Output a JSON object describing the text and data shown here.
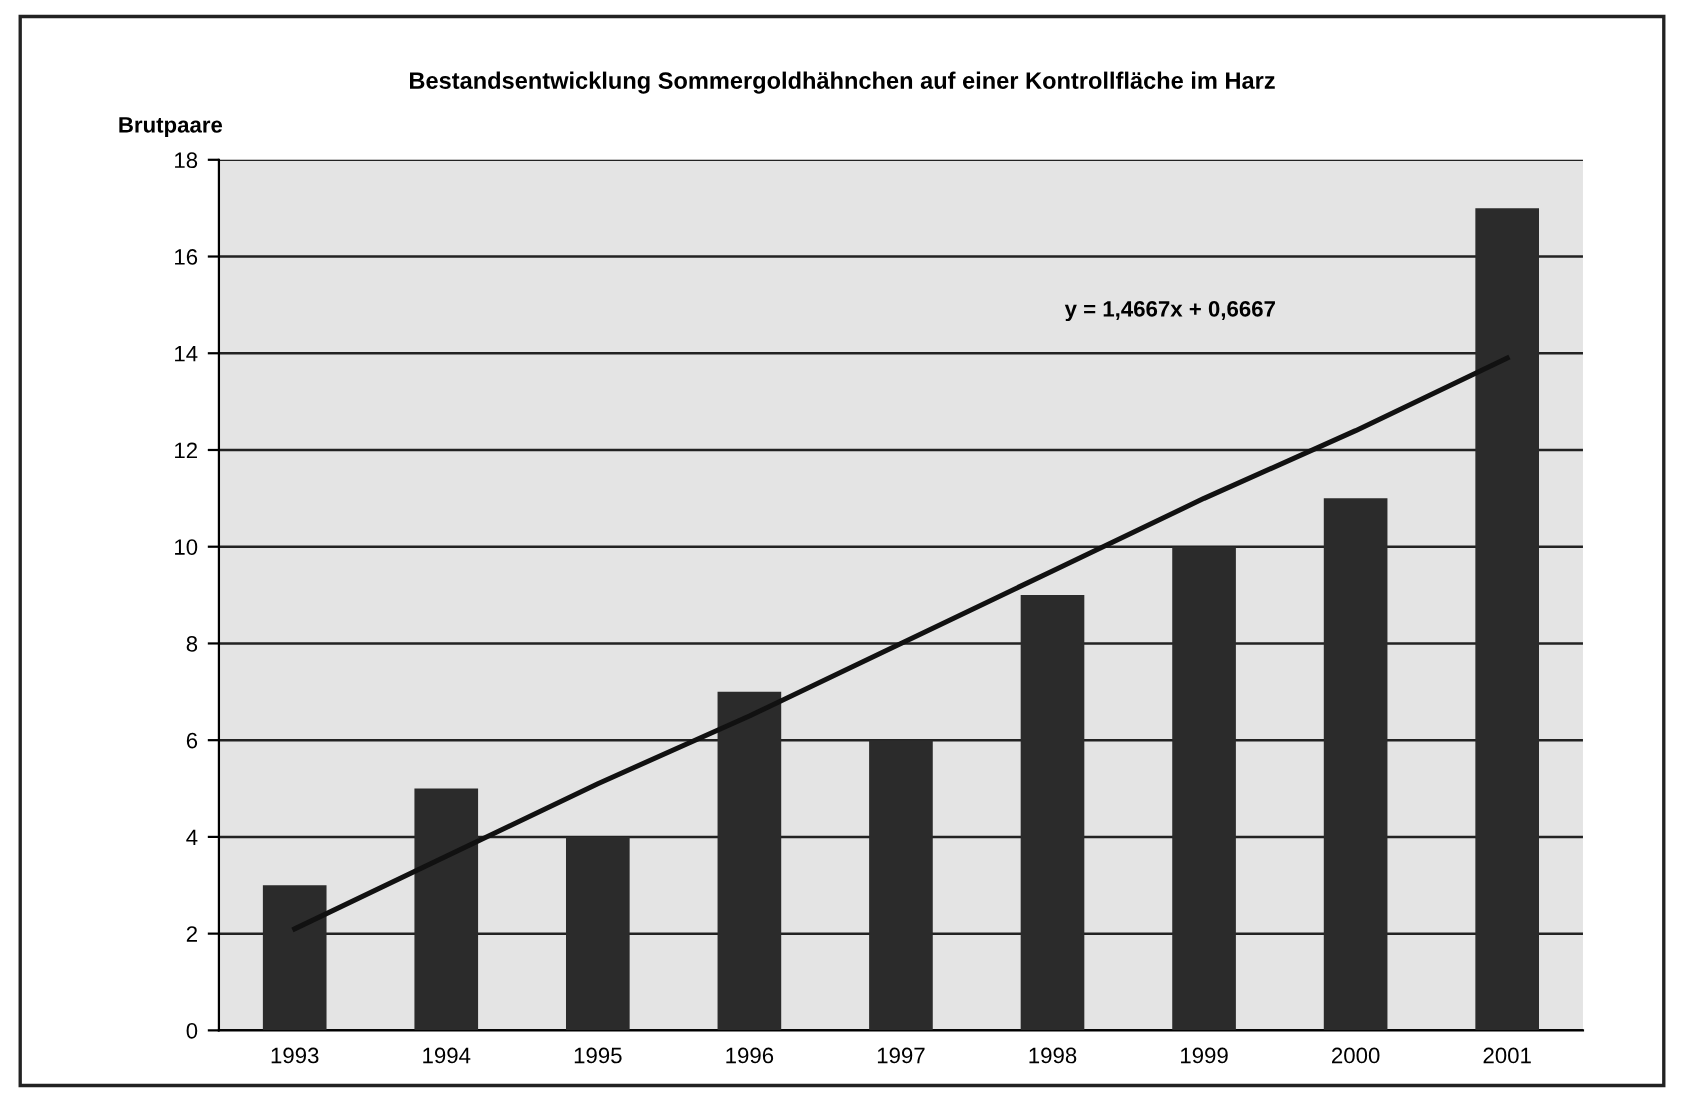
{
  "chart_data": {
    "type": "bar",
    "title": "Bestandsentwicklung Sommergoldhähnchen auf einer Kontrollfläche im Harz",
    "ylabel": "Brutpaare",
    "categories": [
      "1993",
      "1994",
      "1995",
      "1996",
      "1997",
      "1998",
      "1999",
      "2000",
      "2001"
    ],
    "series": [
      {
        "color": "#2b2b2b",
        "values": [
          3,
          5,
          4,
          7,
          6,
          9,
          10,
          11,
          17
        ]
      },
      {
        "type": "line",
        "color": "#111111",
        "values": [
          2.1,
          3.6,
          5.1,
          6.5,
          8.0,
          9.5,
          11.0,
          12.4,
          13.9
        ]
      }
    ],
    "annotations": [
      "y = 1,4667x + 0,6667"
    ],
    "ylim": [
      0,
      18
    ],
    "yticks": [
      0,
      2,
      4,
      6,
      8,
      10,
      12,
      14,
      16,
      18
    ],
    "grid": "y"
  }
}
